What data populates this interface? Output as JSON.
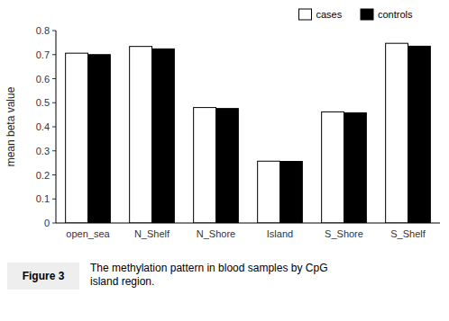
{
  "chart_data": {
    "type": "bar",
    "categories": [
      "open_sea",
      "N_Shelf",
      "N_Shore",
      "Island",
      "S_Shore",
      "S_Shelf"
    ],
    "series": [
      {
        "name": "cases",
        "color": "#ffffff",
        "values": [
          0.706,
          0.734,
          0.48,
          0.257,
          0.462,
          0.747
        ]
      },
      {
        "name": "controls",
        "color": "#000000",
        "values": [
          0.7,
          0.724,
          0.476,
          0.256,
          0.458,
          0.735
        ]
      }
    ],
    "ylabel": "mean beta value",
    "ylim": [
      0,
      0.8
    ],
    "yticks": [
      0,
      0.1,
      0.2,
      0.3,
      0.4,
      0.5,
      0.6,
      0.7,
      0.8
    ],
    "grid": false,
    "legend": "upper right",
    "annotations": [
      "Figure 3",
      "The methylation pattern in blood samples by CpG\nisland region."
    ]
  }
}
